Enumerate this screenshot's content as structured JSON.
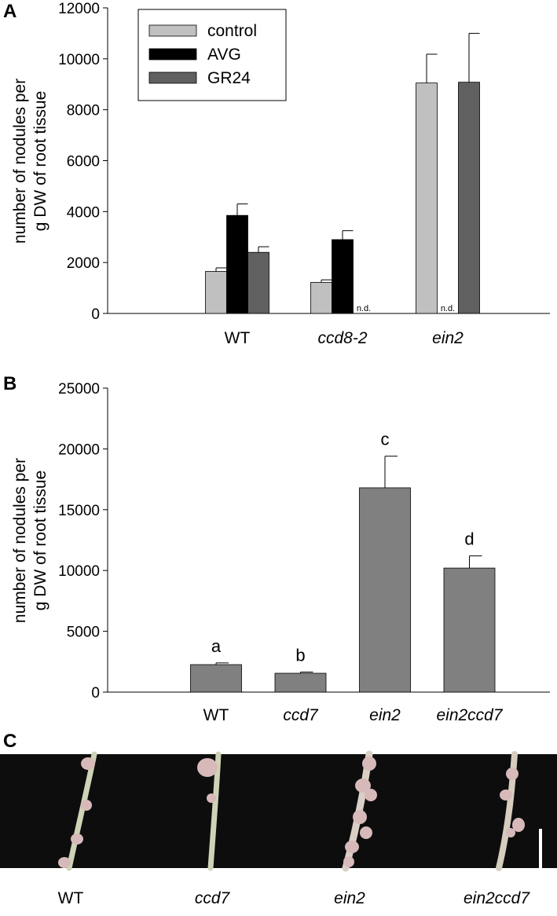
{
  "chart_data": [
    {
      "type": "bar",
      "panel_label": "A",
      "ylabel": [
        "number of nodules per",
        "g DW of root tissue"
      ],
      "categories": [
        "WT",
        "ccd8-2",
        "ein2"
      ],
      "series": [
        {
          "name": "control",
          "color": "#c0c0c0",
          "values": [
            1650,
            1220,
            9050
          ],
          "errors": [
            140,
            100,
            1130
          ]
        },
        {
          "name": "AVG",
          "color": "#000000",
          "values": [
            3850,
            2900,
            null
          ],
          "errors": [
            450,
            350,
            null
          ],
          "value_labels": [
            null,
            null,
            "n.d."
          ]
        },
        {
          "name": "GR24",
          "color": "#606060",
          "values": [
            2400,
            null,
            9080
          ],
          "errors": [
            220,
            null,
            1920
          ],
          "value_labels": [
            null,
            "n.d.",
            null
          ]
        }
      ],
      "ylim": [
        0,
        12000
      ],
      "yticks": [
        0,
        2000,
        4000,
        6000,
        8000,
        10000,
        12000
      ],
      "legend": "upper-left"
    },
    {
      "type": "bar",
      "panel_label": "B",
      "ylabel": [
        "number of nodules per",
        "g DW of root tissue"
      ],
      "categories": [
        "WT",
        "ccd7",
        "ein2",
        "ein2ccd7"
      ],
      "series": [
        {
          "color": "#808080",
          "values": [
            2260,
            1550,
            16800,
            10200
          ],
          "errors": [
            140,
            100,
            2600,
            1000
          ],
          "annotations": [
            "a",
            "b",
            "c",
            "d"
          ]
        }
      ],
      "ylim": [
        0,
        25000
      ],
      "yticks": [
        0,
        5000,
        10000,
        15000,
        20000,
        25000
      ]
    }
  ],
  "photo": {
    "panel_label": "C",
    "labels": [
      "WT",
      "ccd7",
      "ein2",
      "ein2ccd7"
    ]
  }
}
